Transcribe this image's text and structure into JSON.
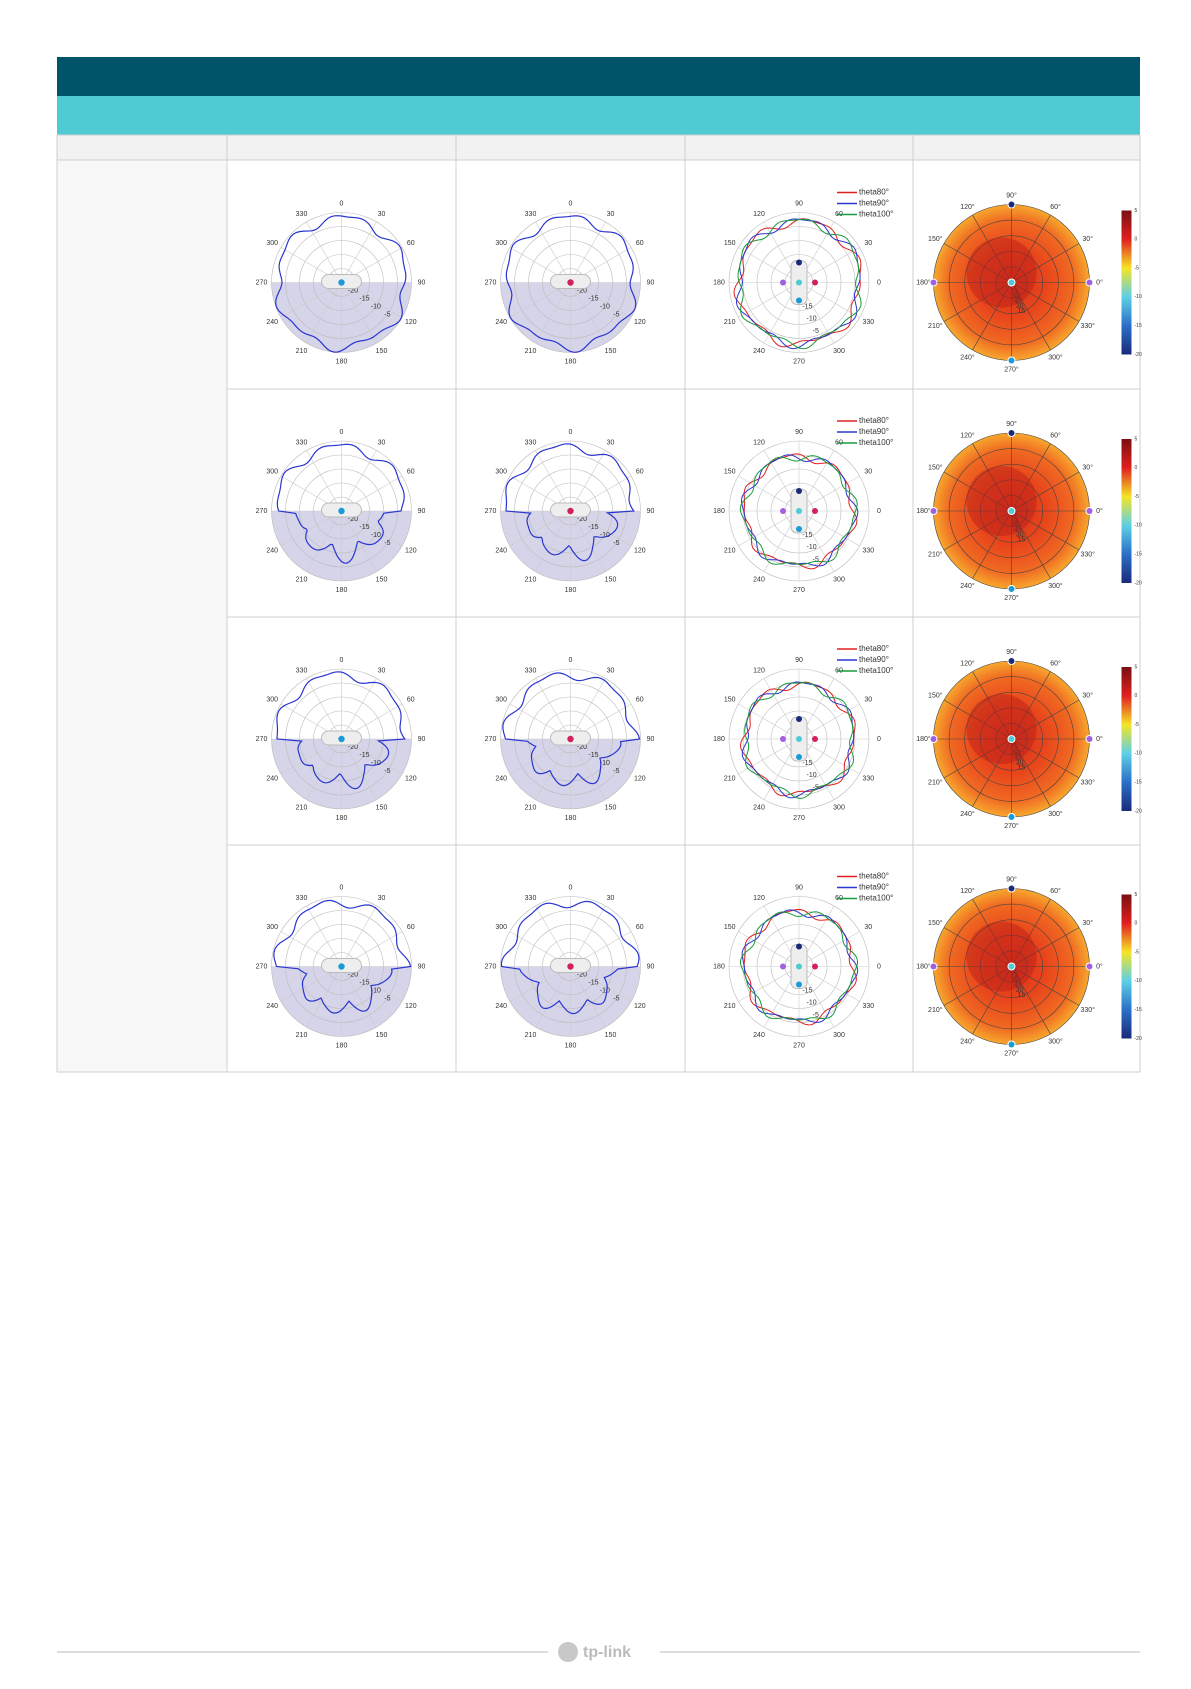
{
  "plots": {
    "elevation": {
      "angles": [
        0,
        30,
        60,
        90,
        120,
        150,
        180,
        210,
        240,
        270,
        300,
        330
      ],
      "radii": [
        -5,
        -10,
        -15,
        -20
      ]
    },
    "azimuth": {
      "angles": [
        0,
        30,
        60,
        90,
        120,
        150,
        180,
        210,
        240,
        270,
        300,
        330
      ],
      "radii": [
        -5,
        -10,
        -15
      ],
      "legend": [
        "theta80°",
        "theta90°",
        "theta100°"
      ]
    },
    "heatmap": {
      "angles": [
        "0°",
        "30°",
        "60°",
        "90°",
        "120°",
        "150°",
        "180°",
        "210°",
        "240°",
        "270°",
        "300°",
        "330°"
      ],
      "radii": [
        15,
        30,
        45,
        60,
        75,
        90
      ],
      "colorbar": [
        5,
        0,
        -5,
        -10,
        -15,
        -20
      ]
    }
  },
  "footer": {
    "logo": "tp-link"
  }
}
